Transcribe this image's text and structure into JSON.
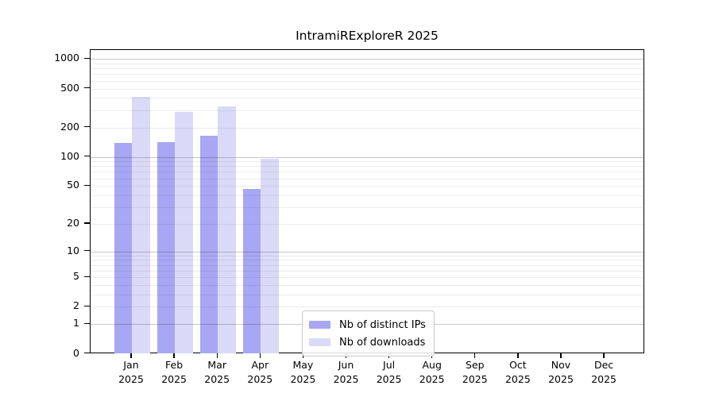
{
  "chart_data": {
    "type": "bar",
    "title": "IntramiRExploreR 2025",
    "categories": [
      "Jan",
      "Feb",
      "Mar",
      "Apr",
      "May",
      "Jun",
      "Jul",
      "Aug",
      "Sep",
      "Oct",
      "Nov",
      "Dec"
    ],
    "x_year": "2025",
    "series": [
      {
        "name": "Nb of distinct IPs",
        "color": "#a7a7f3",
        "values": [
          138,
          142,
          165,
          47,
          0,
          0,
          0,
          0,
          0,
          0,
          0,
          0
        ]
      },
      {
        "name": "Nb of downloads",
        "color": "#dadaf8",
        "values": [
          410,
          290,
          330,
          96,
          0,
          0,
          0,
          0,
          0,
          0,
          0,
          0
        ]
      }
    ],
    "y_axis": {
      "scale": "log1p",
      "tick_labels": [
        1000,
        500,
        200,
        100,
        50,
        20,
        10,
        5,
        2,
        1,
        0
      ],
      "major_grid_values": [
        1,
        10,
        100,
        1000
      ],
      "ylim": [
        0,
        1200
      ]
    },
    "grid": true,
    "legend": {
      "position": "inside-bottom-center",
      "items": [
        "Nb of distinct IPs",
        "Nb of downloads"
      ]
    },
    "colors": {
      "axis": "#000000",
      "background": "#ffffff",
      "major_grid_on_white": "#c8c8c8",
      "minor_grid_on_white": "#ececec"
    }
  }
}
